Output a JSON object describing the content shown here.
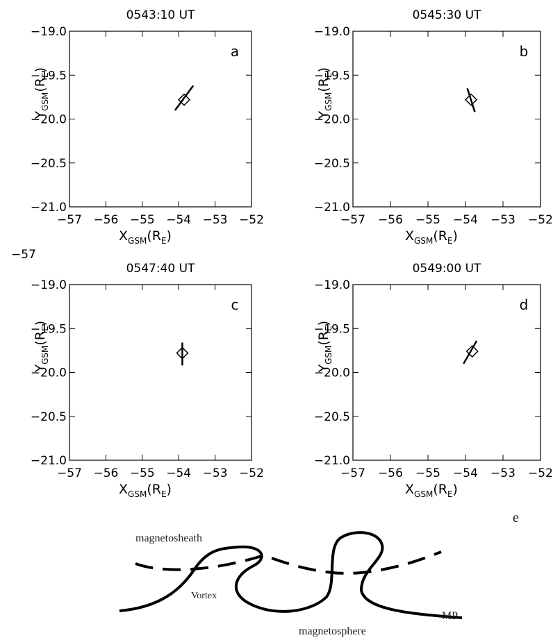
{
  "chart_data": [
    {
      "type": "scatter",
      "title": "0543:10 UT",
      "panel_label": "a",
      "x_label": [
        "X",
        "GSM",
        "(R",
        "E",
        ")"
      ],
      "y_label": [
        "Y",
        "GSM",
        "(R",
        "E",
        ")"
      ],
      "xlim": [
        -57,
        -52
      ],
      "ylim": [
        -21,
        -19
      ],
      "xticks": [
        {
          "value": -57,
          "label": "−57"
        },
        {
          "value": -56,
          "label": "−56"
        },
        {
          "value": -55,
          "label": "−55"
        },
        {
          "value": -54,
          "label": "−54"
        },
        {
          "value": -53,
          "label": "−53"
        },
        {
          "value": -52,
          "label": "−52"
        }
      ],
      "yticks": [
        {
          "value": -21,
          "label": "−21.0"
        },
        {
          "value": -20.5,
          "label": "−20.5"
        },
        {
          "value": -20,
          "label": "−20.0"
        },
        {
          "value": -19.5,
          "label": "−19.5"
        },
        {
          "value": -19,
          "label": "−19.0"
        }
      ],
      "series": [
        {
          "marker": "diamond",
          "x": [
            -53.85
          ],
          "y": [
            -19.78
          ]
        },
        {
          "marker": "line",
          "x": [
            -54.1,
            -53.6
          ],
          "y": [
            -19.9,
            -19.62
          ]
        }
      ]
    },
    {
      "type": "scatter",
      "title": "0545:30 UT",
      "panel_label": "b",
      "x_label": [
        "X",
        "GSM",
        "(R",
        "E",
        ")"
      ],
      "y_label": [
        "Y",
        "GSM",
        "(R",
        "E",
        ")"
      ],
      "xlim": [
        -57,
        -52
      ],
      "ylim": [
        -21,
        -19
      ],
      "xticks": [
        {
          "value": -57,
          "label": "−57"
        },
        {
          "value": -56,
          "label": "−56"
        },
        {
          "value": -55,
          "label": "−55"
        },
        {
          "value": -54,
          "label": "−54"
        },
        {
          "value": -53,
          "label": "−53"
        },
        {
          "value": -52,
          "label": "−52"
        }
      ],
      "yticks": [
        {
          "value": -21,
          "label": "−21.0"
        },
        {
          "value": -20.5,
          "label": "−20.5"
        },
        {
          "value": -20,
          "label": "−20.0"
        },
        {
          "value": -19.5,
          "label": "−19.5"
        },
        {
          "value": -19,
          "label": "−19.0"
        }
      ],
      "series": [
        {
          "marker": "diamond",
          "x": [
            -53.85
          ],
          "y": [
            -19.78
          ]
        },
        {
          "marker": "line",
          "x": [
            -53.95,
            -53.75
          ],
          "y": [
            -19.65,
            -19.92
          ]
        }
      ]
    },
    {
      "type": "scatter",
      "title": "0547:40 UT",
      "panel_label": "c",
      "x_label": [
        "X",
        "GSM",
        "(R",
        "E",
        ")"
      ],
      "y_label": [
        "Y",
        "GSM",
        "(R",
        "E",
        ")"
      ],
      "xlim": [
        -57,
        -52
      ],
      "ylim": [
        -21,
        -19
      ],
      "xticks": [
        {
          "value": -57,
          "label": "−57"
        },
        {
          "value": -56,
          "label": "−56"
        },
        {
          "value": -55,
          "label": "−55"
        },
        {
          "value": -54,
          "label": "−54"
        },
        {
          "value": -53,
          "label": "−53"
        },
        {
          "value": -52,
          "label": "−52"
        }
      ],
      "yticks": [
        {
          "value": -21,
          "label": "−21.0"
        },
        {
          "value": -20.5,
          "label": "−20.5"
        },
        {
          "value": -20,
          "label": "−20.0"
        },
        {
          "value": -19.5,
          "label": "−19.5"
        },
        {
          "value": -19,
          "label": "−19.0"
        }
      ],
      "series": [
        {
          "marker": "diamond",
          "x": [
            -53.9
          ],
          "y": [
            -19.78
          ]
        },
        {
          "marker": "line",
          "x": [
            -53.9,
            -53.9
          ],
          "y": [
            -19.66,
            -19.92
          ]
        }
      ]
    },
    {
      "type": "scatter",
      "title": "0549:00 UT",
      "panel_label": "d",
      "x_label": [
        "X",
        "GSM",
        "(R",
        "E",
        ")"
      ],
      "y_label": [
        "Y",
        "GSM",
        "(R",
        "E",
        ")"
      ],
      "xlim": [
        -57,
        -52
      ],
      "ylim": [
        -21,
        -19
      ],
      "xticks": [
        {
          "value": -57,
          "label": "−57"
        },
        {
          "value": -56,
          "label": "−56"
        },
        {
          "value": -55,
          "label": "−55"
        },
        {
          "value": -54,
          "label": "−54"
        },
        {
          "value": -53,
          "label": "−53"
        },
        {
          "value": -52,
          "label": "−52"
        }
      ],
      "yticks": [
        {
          "value": -21,
          "label": "−21.0"
        },
        {
          "value": -20.5,
          "label": "−20.5"
        },
        {
          "value": -20,
          "label": "−20.0"
        },
        {
          "value": -19.5,
          "label": "−19.5"
        },
        {
          "value": -19,
          "label": "−19.0"
        }
      ],
      "series": [
        {
          "marker": "diamond",
          "x": [
            -53.82
          ],
          "y": [
            -19.76
          ]
        },
        {
          "marker": "line",
          "x": [
            -54.05,
            -53.7
          ],
          "y": [
            -19.9,
            -19.64
          ]
        }
      ]
    }
  ],
  "stray_label": "−57",
  "diagram": {
    "panel_label": "e",
    "labels": [
      "magnetosheath",
      "Vortex",
      "magnetosphere",
      "MP"
    ]
  }
}
